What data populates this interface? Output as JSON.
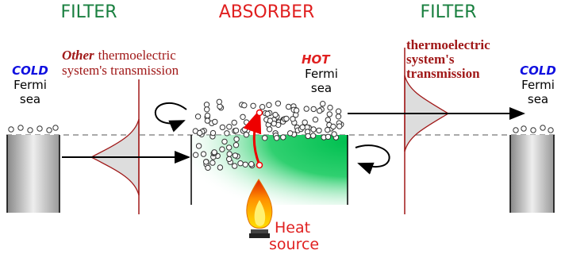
{
  "headers": {
    "left_filter": "FILTER",
    "absorber": "ABSORBER",
    "right_filter": "FILTER"
  },
  "left_reservoir": {
    "label": "COLD",
    "lines": [
      "Fermi",
      "sea"
    ]
  },
  "left_transmission": {
    "emphasis": "Other",
    "rest": "thermoelectric",
    "line2": "system's transmission"
  },
  "absorber_label": {
    "label": "HOT",
    "lines": [
      "Fermi",
      "sea"
    ]
  },
  "right_transmission": {
    "lines": [
      "thermoelectric",
      "system's",
      "transmission"
    ]
  },
  "right_reservoir": {
    "label": "COLD",
    "lines": [
      "Fermi",
      "sea"
    ]
  },
  "heat_source": {
    "lines": [
      "Heat",
      "source"
    ]
  }
}
